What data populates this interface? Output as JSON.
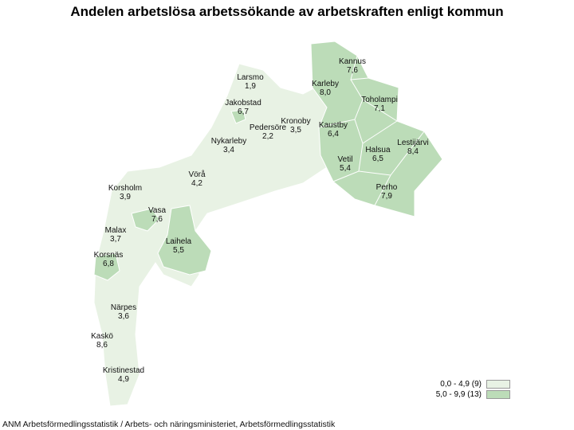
{
  "title": "Andelen arbetslösa arbetssökande av arbetskraften enligt kommun",
  "source": "ANM Arbetsförmedlingsstatistik / Arbets- och näringsministeriet, Arbetsförmedlingsstatistik",
  "colors": {
    "low": "#e8f2e4",
    "high": "#bcdcb8",
    "border": "#ffffff"
  },
  "legend": [
    {
      "label": "0,0 - 4,9 (9)",
      "class": "low"
    },
    {
      "label": "5,0 - 9,9 (13)",
      "class": "high"
    }
  ],
  "municipalities": [
    {
      "name": "Kannus",
      "value": "7,6",
      "class": "high"
    },
    {
      "name": "Larsmo",
      "value": "1,9",
      "class": "low"
    },
    {
      "name": "Karleby",
      "value": "8,0",
      "class": "high"
    },
    {
      "name": "Toholampi",
      "value": "7,1",
      "class": "high"
    },
    {
      "name": "Jakobstad",
      "value": "6,7",
      "class": "high"
    },
    {
      "name": "Kronoby",
      "value": "3,5",
      "class": "low"
    },
    {
      "name": "Pedersöre",
      "value": "2,2",
      "class": "low"
    },
    {
      "name": "Kaustby",
      "value": "6,4",
      "class": "high"
    },
    {
      "name": "Lestijärvi",
      "value": "8,4",
      "class": "high"
    },
    {
      "name": "Nykarleby",
      "value": "3,4",
      "class": "low"
    },
    {
      "name": "Halsua",
      "value": "6,5",
      "class": "high"
    },
    {
      "name": "Vetil",
      "value": "5,4",
      "class": "high"
    },
    {
      "name": "Vörå",
      "value": "4,2",
      "class": "low"
    },
    {
      "name": "Perho",
      "value": "7,9",
      "class": "high"
    },
    {
      "name": "Korsholm",
      "value": "3,9",
      "class": "low"
    },
    {
      "name": "Vasa",
      "value": "7,6",
      "class": "high"
    },
    {
      "name": "Laihela",
      "value": "5,5",
      "class": "high"
    },
    {
      "name": "Malax",
      "value": "3,7",
      "class": "low"
    },
    {
      "name": "Korsnäs",
      "value": "6,8",
      "class": "high"
    },
    {
      "name": "Närpes",
      "value": "3,6",
      "class": "low"
    },
    {
      "name": "Kaskö",
      "value": "8,6",
      "class": "high"
    },
    {
      "name": "Kristinestad",
      "value": "4,9",
      "class": "low"
    }
  ]
}
